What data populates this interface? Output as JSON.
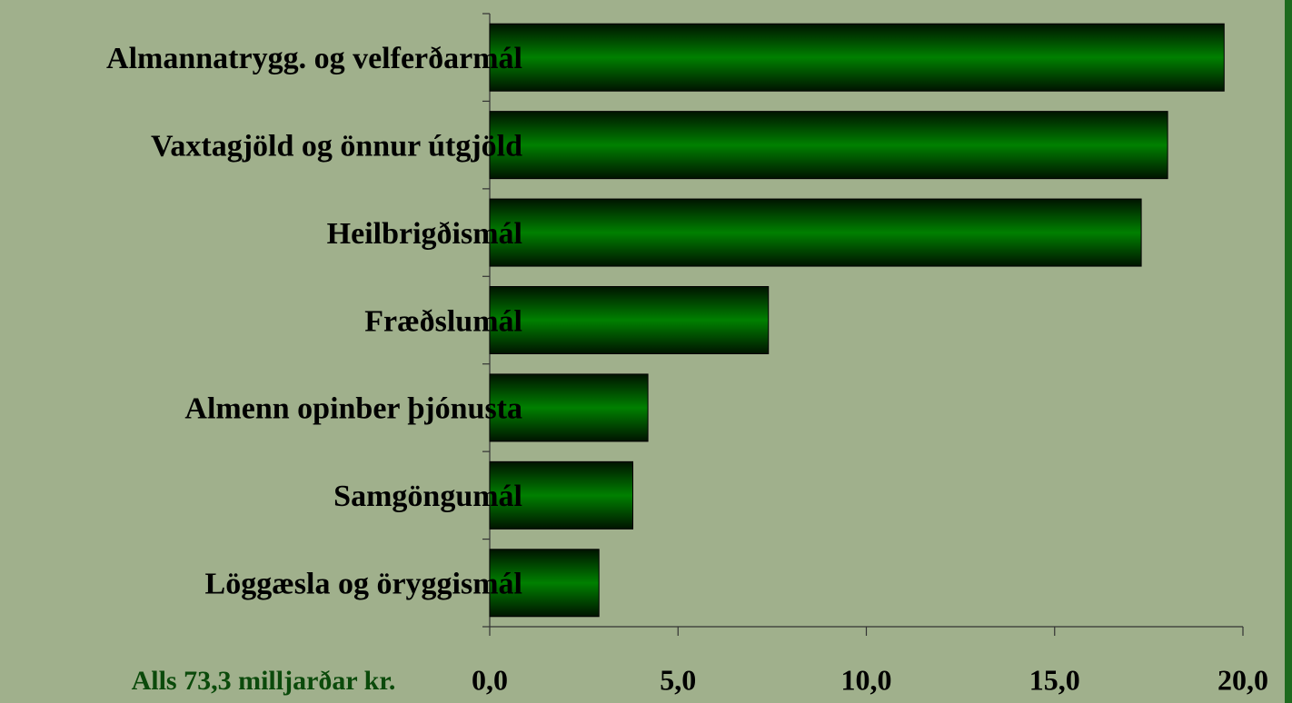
{
  "chart_data": {
    "type": "barh",
    "categories": [
      "Almannatrygg. og velferðarmál",
      "Vaxtagjöld og önnur útgjöld",
      "Heilbrigðismál",
      "Fræðslumál",
      "Almenn opinber þjónusta",
      "Samgöngumál",
      "Löggæsla og öryggismál"
    ],
    "values": [
      19.5,
      18.0,
      17.3,
      7.4,
      4.2,
      3.8,
      2.9
    ],
    "color": "#008000",
    "xlim": [
      0,
      20
    ],
    "xticks": [
      {
        "value": 0,
        "label": "0,0"
      },
      {
        "value": 5,
        "label": "5,0"
      },
      {
        "value": 10,
        "label": "10,0"
      },
      {
        "value": 15,
        "label": "15,0"
      },
      {
        "value": 20,
        "label": "20,0"
      }
    ],
    "annotation": "Alls 73,3 milljarðar kr."
  }
}
